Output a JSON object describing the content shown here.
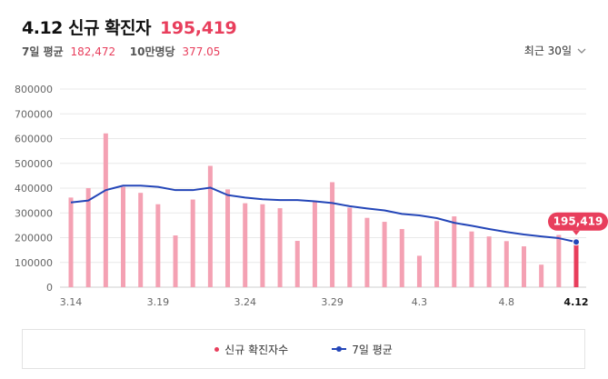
{
  "header": {
    "title": "4.12 신규 확진자",
    "headline_value": "195,419",
    "avg_label": "7일 평균",
    "avg_value": "182,472",
    "per100k_label": "10만명당",
    "per100k_value": "377.05",
    "period_select": "최근 30일"
  },
  "legend": {
    "bars": "신규 확진자수",
    "line": "7일 평균"
  },
  "colors": {
    "bar": "#f4a1b3",
    "bar_last": "#e83e5c",
    "line": "#2446b8",
    "accent": "#e83e5c",
    "grid": "#e9e9e9",
    "axis_text": "#666666"
  },
  "chart_data": {
    "type": "bar",
    "title": "",
    "xlabel": "",
    "ylabel": "",
    "ylim": [
      0,
      800000
    ],
    "yticks": [
      0,
      100000,
      200000,
      300000,
      400000,
      500000,
      600000,
      700000,
      800000
    ],
    "grid": true,
    "legend_position": "bottom",
    "dates": [
      "3.14",
      "3.15",
      "3.16",
      "3.17",
      "3.18",
      "3.19",
      "3.20",
      "3.21",
      "3.22",
      "3.23",
      "3.24",
      "3.25",
      "3.26",
      "3.27",
      "3.28",
      "3.29",
      "3.30",
      "3.31",
      "4.1",
      "4.2",
      "4.3",
      "4.4",
      "4.5",
      "4.6",
      "4.7",
      "4.8",
      "4.9",
      "4.10",
      "4.11",
      "4.12"
    ],
    "x_tick_labels": [
      "3.14",
      "3.19",
      "3.24",
      "3.29",
      "4.3",
      "4.8",
      "4.12"
    ],
    "highlight_label": "195,419",
    "series": [
      {
        "name": "신규 확진자수",
        "kind": "bar",
        "values": [
          362000,
          400000,
          621000,
          405000,
          381000,
          335000,
          209000,
          354000,
          490000,
          395000,
          339000,
          335000,
          319000,
          187000,
          348000,
          424000,
          321000,
          280000,
          264000,
          235000,
          127000,
          267000,
          286000,
          225000,
          205000,
          186000,
          165000,
          91000,
          211000,
          195419
        ]
      },
      {
        "name": "7일 평균",
        "kind": "line",
        "values": [
          342000,
          350000,
          392000,
          410000,
          410000,
          405000,
          392000,
          392000,
          402000,
          372000,
          362000,
          355000,
          352000,
          352000,
          347000,
          340000,
          327000,
          318000,
          310000,
          296000,
          290000,
          279000,
          260000,
          248000,
          235000,
          223000,
          213000,
          205000,
          198000,
          182472
        ]
      }
    ]
  }
}
